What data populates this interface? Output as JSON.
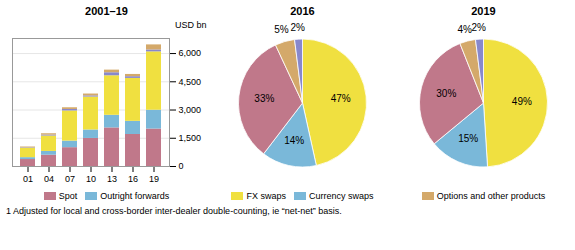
{
  "chart_data": [
    {
      "type": "bar",
      "stacked": true,
      "title": "2001–19",
      "ylabel": "USD bn",
      "categories": [
        "01",
        "04",
        "07",
        "10",
        "13",
        "16",
        "19"
      ],
      "series": [
        {
          "name": "Spot",
          "color": "#c0788a",
          "values": [
            370,
            600,
            1000,
            1490,
            2050,
            1700,
            1990
          ]
        },
        {
          "name": "Outright forwards",
          "color": "#7ab8d9",
          "values": [
            100,
            200,
            350,
            450,
            670,
            700,
            1000
          ]
        },
        {
          "name": null,
          "color": "#f0e040",
          "values": [
            500,
            820,
            1600,
            1750,
            2100,
            2280,
            3100
          ]
        },
        {
          "name": null,
          "color": "#8888cc",
          "values": [
            25,
            50,
            80,
            60,
            160,
            90,
            100
          ]
        },
        {
          "name": null,
          "color": "#d4a96a",
          "values": [
            40,
            70,
            90,
            100,
            140,
            120,
            270
          ]
        }
      ],
      "ylim": [
        0,
        6800
      ],
      "yticks": [
        0,
        {
          "value": 1500,
          "label": "1,500"
        },
        {
          "value": 3000,
          "label": "3,000"
        },
        {
          "value": 4500,
          "label": "4,500"
        },
        {
          "value": 6000,
          "label": "6,000"
        }
      ],
      "grid": true,
      "legend": "bottom",
      "annotations": [
        "1  Adjusted for local and cross-border inter-dealer double-counting, ie “net-net” basis."
      ]
    },
    {
      "type": "pie",
      "title": "2016",
      "categories": [
        "FX swaps",
        "Currency swaps",
        null,
        null,
        null
      ],
      "values": [
        47,
        14,
        33,
        5,
        2
      ],
      "value_labels": [
        "47%",
        "14%",
        "33%",
        "5%",
        "2%"
      ],
      "colors": [
        "#f0e040",
        "#7ab8d9",
        "#c0788a",
        "#d4a96a",
        "#8888cc"
      ],
      "data_labels": true,
      "legend": "bottom"
    },
    {
      "type": "pie",
      "title": "2019",
      "categories": [
        null,
        null,
        null,
        "Options and other products",
        null
      ],
      "values": [
        49,
        15,
        30,
        4,
        2
      ],
      "value_labels": [
        "49%",
        "15%",
        "30%",
        "4%",
        "2%"
      ],
      "colors": [
        "#f0e040",
        "#7ab8d9",
        "#c0788a",
        "#d4a96a",
        "#8888cc"
      ],
      "data_labels": true,
      "legend": "bottom"
    }
  ]
}
